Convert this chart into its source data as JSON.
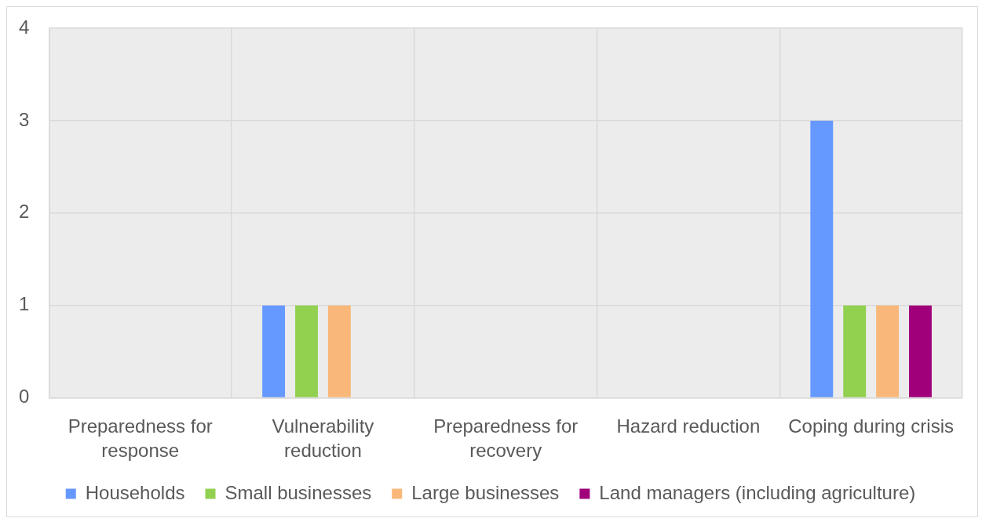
{
  "chart_data": {
    "type": "bar",
    "categories": [
      "Preparedness for response",
      "Vulnerability reduction",
      "Preparedness for recovery",
      "Hazard reduction",
      "Coping during crisis"
    ],
    "series": [
      {
        "name": "Households",
        "color": "#6699ff",
        "values": [
          0,
          1,
          0,
          0,
          3
        ]
      },
      {
        "name": "Small businesses",
        "color": "#92d050",
        "values": [
          0,
          1,
          0,
          0,
          1
        ]
      },
      {
        "name": "Large businesses",
        "color": "#f9b879",
        "values": [
          0,
          1,
          0,
          0,
          1
        ]
      },
      {
        "name": "Land managers (including agriculture)",
        "color": "#a0007a",
        "values": [
          0,
          0,
          0,
          0,
          1
        ]
      }
    ],
    "ylim": [
      0,
      4
    ],
    "yticks": [
      0,
      1,
      2,
      3,
      4
    ],
    "grid": true,
    "legend": "bottom"
  }
}
